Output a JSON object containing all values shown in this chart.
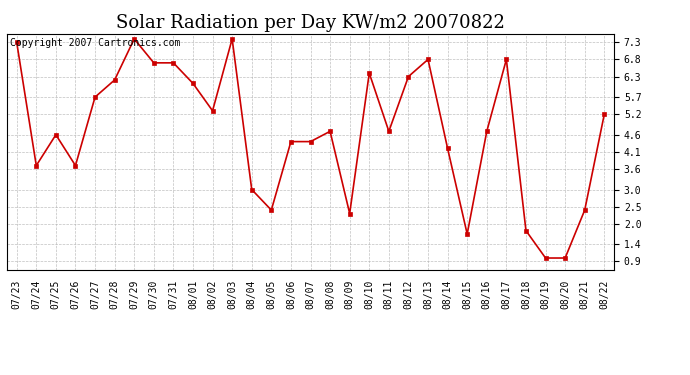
{
  "title": "Solar Radiation per Day KW/m2 20070822",
  "copyright_text": "Copyright 2007 Cartronics.com",
  "labels": [
    "07/23",
    "07/24",
    "07/25",
    "07/26",
    "07/27",
    "07/28",
    "07/29",
    "07/30",
    "07/31",
    "08/01",
    "08/02",
    "08/03",
    "08/04",
    "08/05",
    "08/06",
    "08/07",
    "08/08",
    "08/09",
    "08/10",
    "08/11",
    "08/12",
    "08/13",
    "08/14",
    "08/15",
    "08/16",
    "08/17",
    "08/18",
    "08/19",
    "08/20",
    "08/21",
    "08/22"
  ],
  "values": [
    7.3,
    3.7,
    4.6,
    3.7,
    5.7,
    6.2,
    7.4,
    6.7,
    6.7,
    6.1,
    5.3,
    7.4,
    3.0,
    2.4,
    4.4,
    4.4,
    4.7,
    2.3,
    6.4,
    4.7,
    6.3,
    6.8,
    4.2,
    1.7,
    4.7,
    6.8,
    1.8,
    1.0,
    1.0,
    2.4,
    5.2
  ],
  "line_color": "#cc0000",
  "marker_color": "#cc0000",
  "bg_color": "#ffffff",
  "plot_bg_color": "#ffffff",
  "grid_color": "#b0b0b0",
  "yticks": [
    0.9,
    1.4,
    2.0,
    2.5,
    3.0,
    3.6,
    4.1,
    4.6,
    5.2,
    5.7,
    6.3,
    6.8,
    7.3
  ],
  "ymin": 0.65,
  "ymax": 7.55,
  "title_fontsize": 13,
  "copyright_fontsize": 7,
  "tick_fontsize": 7
}
